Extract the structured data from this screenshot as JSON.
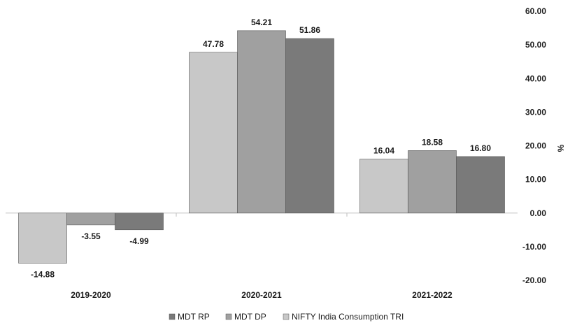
{
  "chart_data": {
    "type": "bar",
    "categories": [
      "2019-2020",
      "2020-2021",
      "2021-2022"
    ],
    "series": [
      {
        "name": "NIFTY India Consumption TRI",
        "color": "#c8c8c8",
        "values": [
          -14.88,
          47.78,
          16.04
        ]
      },
      {
        "name": "MDT DP",
        "color": "#a0a0a0",
        "values": [
          -3.55,
          54.21,
          18.58
        ]
      },
      {
        "name": "MDT RP",
        "color": "#7a7a7a",
        "values": [
          -4.99,
          51.86,
          16.8
        ]
      }
    ],
    "legend_order": [
      "MDT RP",
      "MDT DP",
      "NIFTY India Consumption TRI"
    ],
    "ylabel": "%",
    "ylim": [
      -20,
      60
    ],
    "yticks": [
      "60.00",
      "50.00",
      "40.00",
      "30.00",
      "20.00",
      "10.00",
      "0.00",
      "-10.00",
      "-20.00"
    ],
    "ytick_values": [
      60,
      50,
      40,
      30,
      20,
      10,
      0,
      -10,
      -20
    ],
    "data_labels": [
      [
        "-14.88",
        "47.78",
        "16.04"
      ],
      [
        "-3.55",
        "54.21",
        "18.58"
      ],
      [
        "-4.99",
        "51.86",
        "16.80"
      ]
    ],
    "y_axis_position": "right",
    "legend_position": "bottom",
    "grid": false
  }
}
